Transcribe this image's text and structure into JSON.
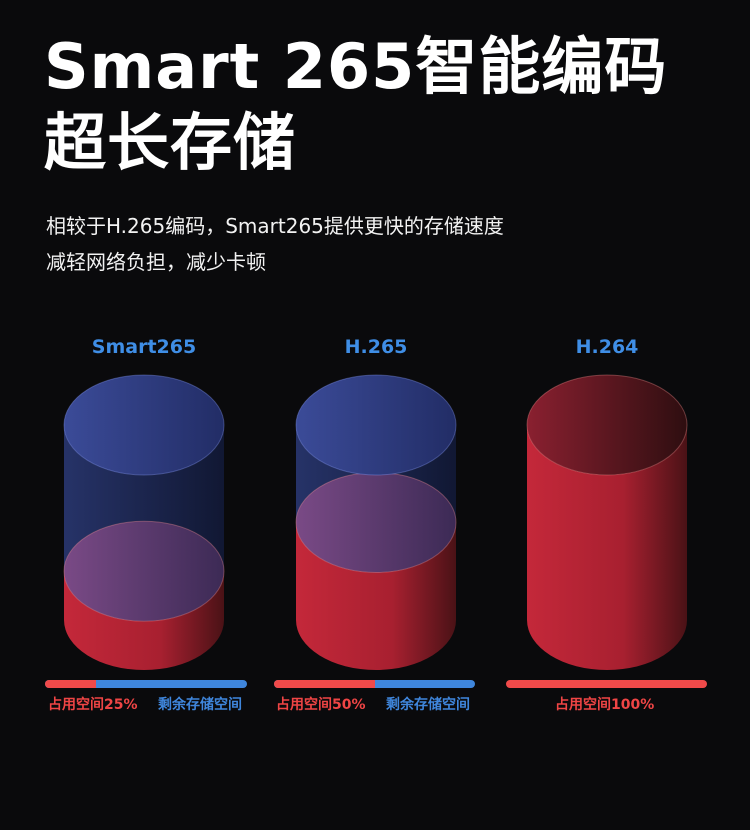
{
  "title": {
    "line1": "Smart 265智能编码",
    "line2": "超长存储"
  },
  "subtitle": {
    "line1": "相较于H.265编码，Smart265提供更快的存储速度",
    "line2": "减轻网络负担，减少卡顿"
  },
  "colors": {
    "used": "#f04a4a",
    "remaining": "#3f86dc",
    "label": "#3f8ee6",
    "background": "#0a0a0c"
  },
  "items": [
    {
      "name": "Smart265",
      "used_percent": 25,
      "used_label": "占用空间25%",
      "remaining_label": "剩余存储空间"
    },
    {
      "name": "H.265",
      "used_percent": 50,
      "used_label": "占用空间50%",
      "remaining_label": "剩余存储空间"
    },
    {
      "name": "H.264",
      "used_percent": 100,
      "used_label": "占用空间100%"
    }
  ]
}
